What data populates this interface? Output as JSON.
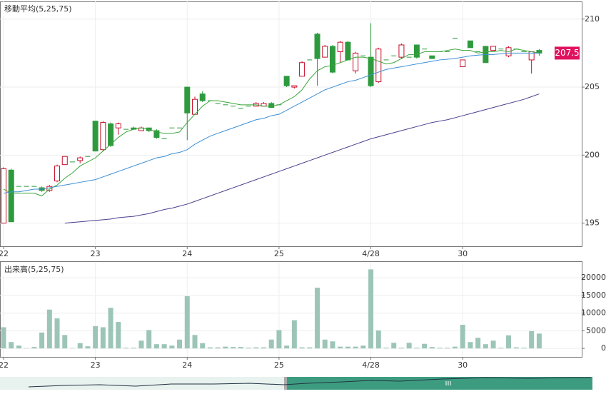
{
  "chart_data": [
    {
      "type": "candlestick",
      "title": "移動平均(5,25,75)",
      "categories": [
        "22",
        null,
        null,
        null,
        null,
        null,
        null,
        null,
        null,
        null,
        null,
        null,
        "23",
        null,
        null,
        null,
        null,
        null,
        null,
        null,
        null,
        null,
        null,
        null,
        "24",
        null,
        null,
        null,
        null,
        null,
        null,
        null,
        null,
        null,
        null,
        null,
        "25",
        null,
        null,
        null,
        null,
        null,
        null,
        null,
        null,
        null,
        null,
        null,
        "4/28",
        null,
        null,
        null,
        null,
        null,
        null,
        null,
        null,
        null,
        null,
        null,
        "30",
        null,
        null,
        null,
        null,
        null,
        null,
        null,
        null,
        null,
        null
      ],
      "open": [
        195.0,
        198.9,
        197.7,
        197.7,
        197.7,
        197.6,
        197.4,
        198.1,
        199.3,
        199.5,
        199.6,
        199.9,
        202.5,
        200.4,
        202.3,
        202.0,
        201.9,
        202.0,
        201.8,
        202.0,
        201.8,
        201.2,
        202.0,
        202.0,
        205.0,
        203.0,
        204.5,
        204.0,
        203.8,
        203.7,
        203.6,
        203.45,
        203.6,
        203.6,
        203.6,
        203.8,
        203.7,
        205.8,
        205.0,
        205.8,
        207.0,
        208.9,
        207.2,
        208.0,
        207.6,
        208.3,
        206.2,
        207.3,
        207.2,
        205.4,
        207.0,
        207.3,
        207.2,
        207.2,
        208.1,
        207.8,
        207.3,
        207.6,
        207.6,
        208.6,
        206.5,
        208.4,
        207.6,
        208.0,
        207.7,
        207.8,
        207.3,
        207.8,
        207.6,
        207.0,
        207.7
      ],
      "high": [
        199.1,
        199.0,
        197.7,
        197.7,
        197.7,
        197.7,
        197.8,
        199.3,
        199.9,
        199.5,
        199.9,
        199.9,
        202.5,
        202.5,
        202.4,
        202.4,
        201.9,
        202.1,
        202.1,
        202.0,
        201.9,
        201.2,
        202.0,
        202.0,
        205.0,
        204.3,
        204.7,
        204.0,
        203.8,
        203.7,
        203.6,
        203.45,
        203.6,
        203.9,
        203.9,
        203.9,
        203.7,
        205.8,
        205.1,
        206.9,
        207.0,
        209.0,
        208.1,
        208.1,
        208.4,
        208.4,
        207.6,
        207.3,
        209.7,
        207.9,
        207.0,
        207.3,
        208.2,
        207.2,
        208.1,
        207.8,
        207.3,
        207.6,
        207.6,
        208.6,
        207.0,
        208.4,
        207.6,
        208.0,
        208.0,
        207.8,
        208.0,
        207.8,
        207.6,
        207.6,
        207.8
      ],
      "low": [
        195.0,
        195.1,
        197.7,
        197.7,
        197.7,
        197.3,
        197.3,
        198.0,
        199.3,
        199.5,
        199.4,
        199.9,
        200.3,
        200.3,
        200.6,
        201.5,
        201.9,
        201.9,
        201.8,
        201.7,
        201.2,
        201.2,
        202.0,
        202.0,
        201.1,
        203.0,
        203.9,
        204.0,
        203.8,
        203.7,
        203.6,
        203.45,
        203.6,
        203.6,
        203.6,
        203.5,
        203.7,
        205.0,
        204.9,
        205.8,
        207.0,
        205.1,
        207.2,
        206.0,
        206.8,
        207.0,
        206.0,
        207.3,
        205.0,
        205.3,
        207.0,
        207.3,
        207.1,
        207.2,
        207.1,
        207.8,
        207.1,
        207.6,
        207.6,
        208.6,
        206.5,
        207.9,
        207.6,
        206.8,
        207.7,
        207.8,
        207.2,
        207.8,
        207.6,
        206.0,
        207.3
      ],
      "close": [
        199.0,
        195.1,
        197.7,
        197.7,
        197.7,
        197.4,
        197.7,
        199.2,
        199.9,
        199.5,
        199.8,
        199.9,
        200.3,
        202.4,
        200.7,
        202.3,
        201.9,
        201.9,
        202.0,
        201.8,
        201.3,
        201.2,
        202.0,
        202.0,
        203.1,
        204.1,
        204.0,
        204.0,
        203.8,
        203.7,
        203.6,
        203.45,
        203.6,
        203.8,
        203.8,
        203.5,
        203.7,
        205.1,
        205.1,
        206.8,
        207.0,
        207.1,
        208.0,
        206.1,
        208.3,
        207.0,
        207.5,
        207.3,
        205.1,
        207.8,
        207.0,
        207.3,
        208.1,
        207.2,
        207.2,
        207.8,
        207.1,
        207.6,
        207.6,
        208.6,
        207.0,
        207.9,
        207.6,
        206.8,
        208.0,
        207.8,
        207.9,
        207.8,
        207.6,
        207.6,
        207.5
      ],
      "up_color": "#c8102e",
      "down_color": "#2e9a3e",
      "series": [
        {
          "name": "5",
          "color": "#3aa63a",
          "values": [
            197.5,
            197.2,
            197.2,
            197.2,
            197.2,
            197.0,
            197.5,
            197.8,
            198.3,
            198.7,
            199.2,
            199.5,
            199.8,
            200.3,
            200.8,
            201.3,
            201.7,
            201.9,
            202.0,
            201.9,
            201.7,
            201.6,
            201.6,
            201.7,
            202.4,
            203.0,
            203.6,
            204.0,
            204.0,
            203.9,
            203.8,
            203.7,
            203.7,
            203.7,
            203.6,
            203.6,
            203.7,
            204.0,
            204.3,
            204.8,
            205.6,
            206.2,
            206.5,
            206.6,
            206.8,
            207.0,
            207.2,
            207.2,
            207.1,
            206.9,
            206.7,
            206.8,
            207.1,
            207.4,
            207.4,
            207.6,
            207.6,
            207.6,
            207.7,
            207.8,
            207.7,
            207.7,
            207.5,
            207.6,
            207.6,
            207.7,
            207.6,
            207.8,
            207.7,
            207.6,
            207.5
          ]
        },
        {
          "name": "25",
          "color": "#3b8fd6",
          "values": [
            197.2,
            197.3,
            197.3,
            197.4,
            197.5,
            197.5,
            197.6,
            197.7,
            197.8,
            197.9,
            198.0,
            198.1,
            198.2,
            198.4,
            198.6,
            198.8,
            199.0,
            199.2,
            199.4,
            199.6,
            199.8,
            199.9,
            200.1,
            200.2,
            200.4,
            200.8,
            201.1,
            201.4,
            201.6,
            201.8,
            202.0,
            202.2,
            202.4,
            202.6,
            202.7,
            202.9,
            203.0,
            203.3,
            203.6,
            203.9,
            204.2,
            204.5,
            204.8,
            205.0,
            205.2,
            205.4,
            205.5,
            205.7,
            205.9,
            206.1,
            206.3,
            206.4,
            206.5,
            206.6,
            206.7,
            206.8,
            206.9,
            207.0,
            207.05,
            207.1,
            207.2,
            207.3,
            207.35,
            207.4,
            207.4,
            207.45,
            207.5,
            207.5,
            207.5,
            207.5,
            207.5
          ]
        },
        {
          "name": "75",
          "color": "#4a3f8c",
          "values": [
            null,
            null,
            null,
            null,
            null,
            null,
            null,
            null,
            195.0,
            195.05,
            195.1,
            195.15,
            195.2,
            195.25,
            195.3,
            195.4,
            195.45,
            195.5,
            195.6,
            195.7,
            195.85,
            196.0,
            196.1,
            196.25,
            196.4,
            196.6,
            196.8,
            197.0,
            197.2,
            197.4,
            197.6,
            197.8,
            198.0,
            198.2,
            198.4,
            198.6,
            198.8,
            199.0,
            199.2,
            199.4,
            199.6,
            199.8,
            200.0,
            200.2,
            200.4,
            200.6,
            200.8,
            201.0,
            201.2,
            201.35,
            201.5,
            201.65,
            201.8,
            201.95,
            202.1,
            202.25,
            202.4,
            202.5,
            202.6,
            202.75,
            202.9,
            203.05,
            203.2,
            203.35,
            203.5,
            203.65,
            203.8,
            203.95,
            204.1,
            204.3,
            204.5
          ]
        }
      ],
      "last_price": 207.5,
      "last_price_color": "#e0115f",
      "ylim": [
        193.3,
        211.3
      ],
      "yticks": [
        195,
        200,
        205,
        210
      ],
      "grid": true
    },
    {
      "type": "bar",
      "title": "出来高(5,25,75)",
      "categories": [
        "22",
        null,
        null,
        null,
        null,
        null,
        null,
        null,
        null,
        null,
        null,
        null,
        "23",
        null,
        null,
        null,
        null,
        null,
        null,
        null,
        null,
        null,
        null,
        null,
        "24",
        null,
        null,
        null,
        null,
        null,
        null,
        null,
        null,
        null,
        null,
        null,
        "25",
        null,
        null,
        null,
        null,
        null,
        null,
        null,
        null,
        null,
        null,
        null,
        "4/28",
        null,
        null,
        null,
        null,
        null,
        null,
        null,
        null,
        null,
        null,
        null,
        "30",
        null,
        null,
        null,
        null,
        null,
        null,
        null,
        null,
        null,
        null
      ],
      "values": [
        6000,
        1800,
        800,
        100,
        400,
        4500,
        11000,
        8500,
        3800,
        100,
        1500,
        600,
        6300,
        6000,
        11500,
        7500,
        200,
        200,
        2200,
        5200,
        1200,
        1200,
        800,
        2500,
        14800,
        3800,
        1500,
        300,
        300,
        500,
        400,
        400,
        200,
        300,
        300,
        2500,
        5200,
        800,
        8000,
        300,
        300,
        17200,
        2500,
        2000,
        500,
        500,
        500,
        800,
        22400,
        5100,
        200,
        1600,
        200,
        1600,
        200,
        1300,
        400,
        200,
        200,
        500,
        6700,
        1800,
        3000,
        1200,
        2200,
        200,
        3700,
        300,
        200,
        4900,
        4200
      ],
      "color": "#9cc5b8",
      "ylim": [
        -2400,
        24500
      ],
      "yticks": [
        0,
        5000,
        10000,
        15000,
        20000
      ],
      "grid": true
    }
  ]
}
